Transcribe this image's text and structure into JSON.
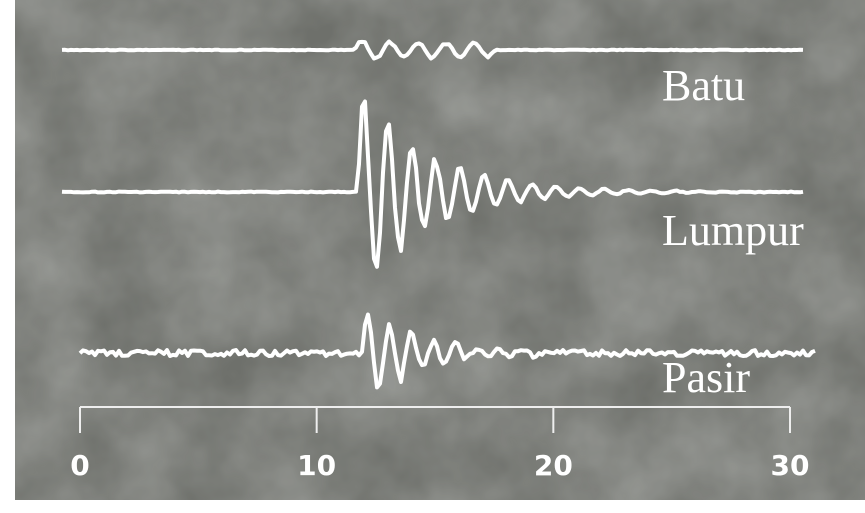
{
  "traces": [
    {
      "label": "Batu"
    },
    {
      "label": "Lumpur"
    },
    {
      "label": "Pasir"
    }
  ],
  "axis": {
    "range": [
      0,
      30
    ],
    "ticks": [
      0,
      10,
      20,
      30
    ]
  }
}
